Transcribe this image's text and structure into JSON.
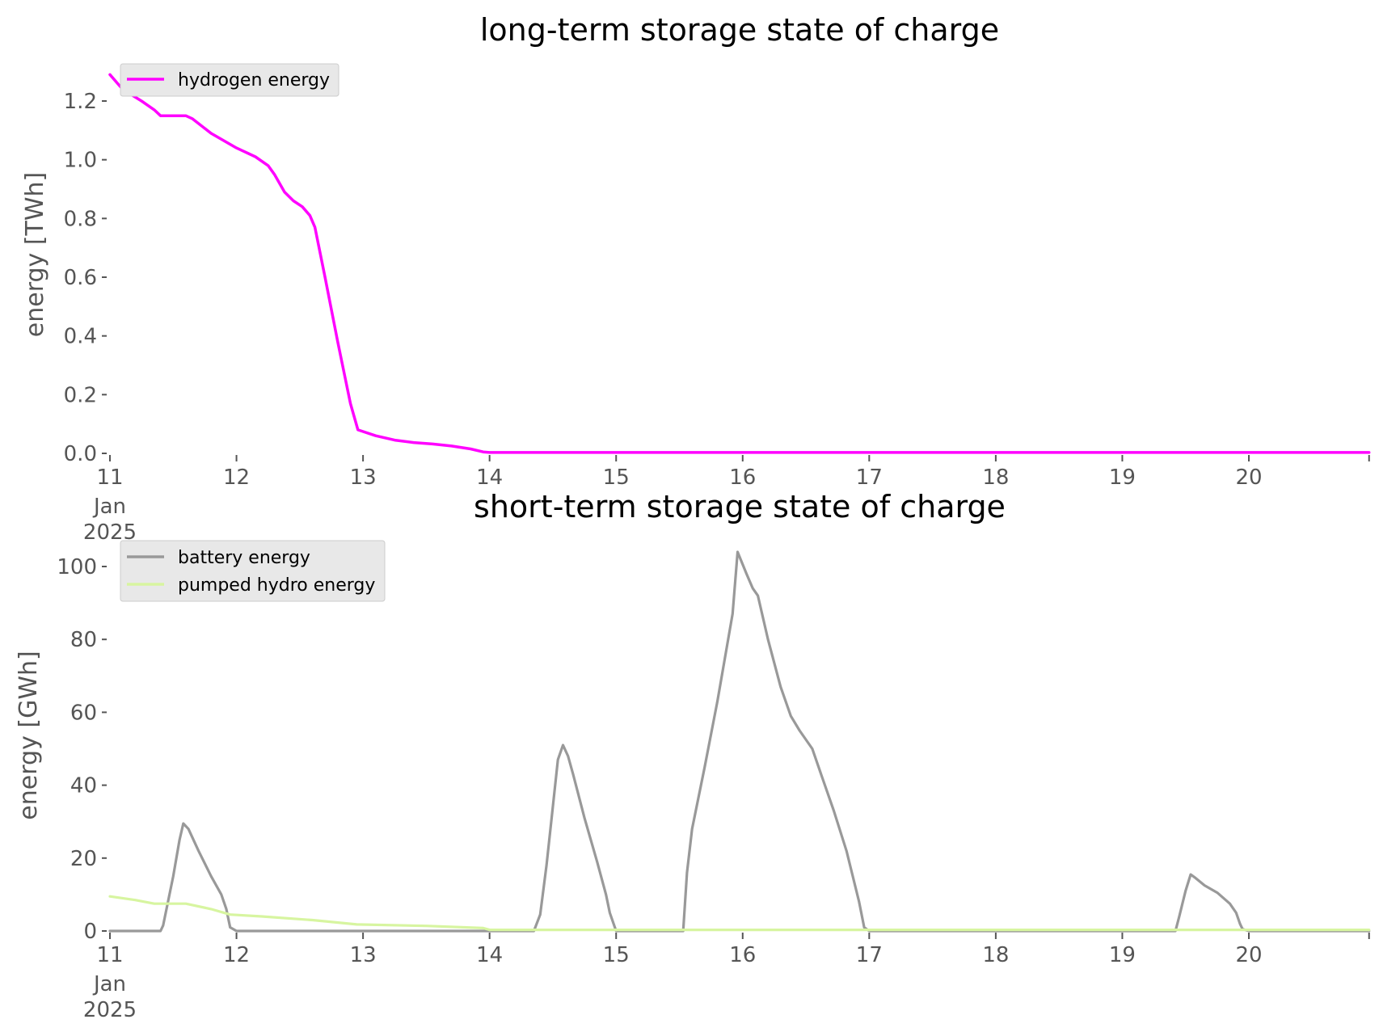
{
  "chart_data": [
    {
      "type": "line",
      "title": "long-term storage state of charge",
      "ylabel": "energy [TWh]",
      "xlabel": "",
      "x_tick_labels": [
        "11",
        "12",
        "13",
        "14",
        "15",
        "16",
        "17",
        "18",
        "19",
        "20"
      ],
      "x_tick_sub": [
        "Jan",
        "2025"
      ],
      "y_ticks": [
        "0.0",
        "0.2",
        "0.4",
        "0.6",
        "0.8",
        "1.0",
        "1.2"
      ],
      "xlim_days": [
        11,
        20.95
      ],
      "ylim": [
        0,
        1.3
      ],
      "grid": false,
      "legend_position": "upper-left",
      "series": [
        {
          "name": "hydrogen energy",
          "color": "#ff00ff",
          "x": [
            11.0,
            11.1,
            11.25,
            11.35,
            11.4,
            11.5,
            11.6,
            11.65,
            11.8,
            12.0,
            12.15,
            12.25,
            12.3,
            12.38,
            12.45,
            12.52,
            12.58,
            12.62,
            12.7,
            12.8,
            12.9,
            12.96,
            13.1,
            13.25,
            13.4,
            13.55,
            13.7,
            13.85,
            13.95,
            14.0,
            14.5,
            15,
            16,
            17,
            18,
            19,
            20,
            20.95
          ],
          "y": [
            1.29,
            1.24,
            1.2,
            1.17,
            1.15,
            1.15,
            1.15,
            1.14,
            1.09,
            1.04,
            1.01,
            0.98,
            0.95,
            0.89,
            0.86,
            0.84,
            0.81,
            0.77,
            0.6,
            0.38,
            0.17,
            0.08,
            0.06,
            0.045,
            0.037,
            0.032,
            0.025,
            0.015,
            0.005,
            0.003,
            0.003,
            0.003,
            0.003,
            0.003,
            0.003,
            0.003,
            0.003,
            0.003
          ]
        }
      ]
    },
    {
      "type": "line",
      "title": "short-term storage state of charge",
      "ylabel": "energy [GWh]",
      "xlabel": "",
      "x_tick_labels": [
        "11",
        "12",
        "13",
        "14",
        "15",
        "16",
        "17",
        "18",
        "19",
        "20"
      ],
      "x_tick_sub": [
        "Jan",
        "2025"
      ],
      "y_ticks": [
        "0",
        "20",
        "40",
        "60",
        "80",
        "100"
      ],
      "xlim_days": [
        11,
        20.95
      ],
      "ylim": [
        0,
        105
      ],
      "grid": false,
      "legend_position": "upper-left",
      "series": [
        {
          "name": "battery energy",
          "color": "#999999",
          "x": [
            11.0,
            11.4,
            11.42,
            11.5,
            11.55,
            11.58,
            11.62,
            11.7,
            11.8,
            11.88,
            11.92,
            11.95,
            12.0,
            14.35,
            14.4,
            14.45,
            14.5,
            14.54,
            14.58,
            14.62,
            14.66,
            14.75,
            14.85,
            14.92,
            14.95,
            15.0,
            15.53,
            15.56,
            15.6,
            15.7,
            15.8,
            15.92,
            15.96,
            16.03,
            16.08,
            16.12,
            16.2,
            16.3,
            16.38,
            16.45,
            16.55,
            16.62,
            16.72,
            16.82,
            16.92,
            16.96,
            17.0,
            19.42,
            19.45,
            19.5,
            19.54,
            19.58,
            19.65,
            19.75,
            19.85,
            19.9,
            19.93,
            19.95,
            20.0,
            20.95
          ],
          "y": [
            0,
            0,
            1.5,
            15,
            25,
            29.5,
            28,
            22,
            15,
            10,
            6,
            1,
            0,
            0,
            4.5,
            18,
            34,
            47,
            51,
            48,
            43,
            31,
            19,
            10,
            5,
            0,
            0,
            16,
            28,
            45,
            63,
            87,
            104,
            98,
            94,
            92,
            80,
            67,
            59,
            55,
            50,
            43,
            33,
            22,
            8,
            1,
            0,
            0,
            4,
            11,
            15.5,
            14.5,
            12.5,
            10.5,
            7.5,
            5,
            2,
            0.5,
            0,
            0
          ]
        },
        {
          "name": "pumped hydro energy",
          "color": "#d7f5a0",
          "x": [
            11.0,
            11.2,
            11.35,
            11.6,
            11.8,
            11.95,
            12.2,
            12.6,
            12.95,
            13.5,
            13.95,
            14.0,
            15,
            16,
            17,
            18,
            19,
            20,
            20.95
          ],
          "y": [
            9.5,
            8.5,
            7.5,
            7.5,
            6,
            4.5,
            4,
            3,
            1.8,
            1.4,
            0.8,
            0.3,
            0.3,
            0.3,
            0.3,
            0.3,
            0.3,
            0.3,
            0.3
          ]
        }
      ]
    }
  ]
}
